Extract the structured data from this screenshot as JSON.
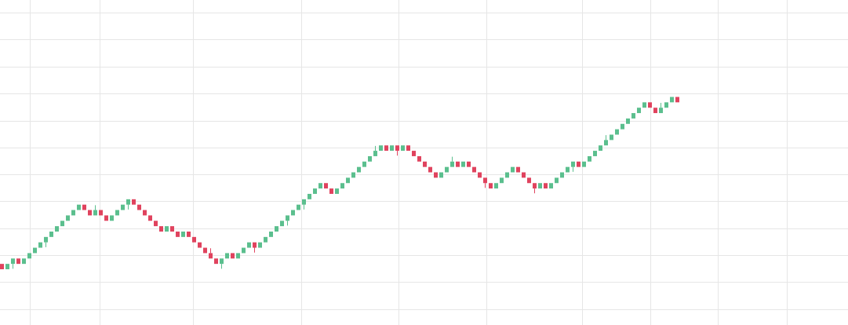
{
  "chart_data": {
    "type": "renko",
    "title": "",
    "xlabel": "",
    "ylabel": "",
    "grid": true,
    "legend": "none",
    "ylim": [
      -6,
      29
    ],
    "colors": {
      "up": "#5bbf8e",
      "down": "#e0435e",
      "grid": "#e6e6e6",
      "background": "#ffffff"
    },
    "bricks": [
      "d",
      "u",
      "u",
      "d",
      "u",
      "u",
      "u",
      "u",
      "u",
      "u",
      "u",
      "u",
      "u",
      "u",
      "u",
      "d",
      "d",
      "u",
      "d",
      "d",
      "u",
      "u",
      "u",
      "u",
      "d",
      "d",
      "d",
      "d",
      "d",
      "d",
      "u",
      "d",
      "d",
      "u",
      "d",
      "d",
      "d",
      "d",
      "d",
      "d",
      "u",
      "u",
      "d",
      "u",
      "u",
      "u",
      "d",
      "u",
      "u",
      "u",
      "u",
      "u",
      "u",
      "u",
      "u",
      "u",
      "u",
      "u",
      "u",
      "d",
      "d",
      "u",
      "u",
      "u",
      "u",
      "u",
      "u",
      "u",
      "u",
      "u",
      "d",
      "u",
      "d",
      "u",
      "d",
      "d",
      "d",
      "d",
      "d",
      "d",
      "u",
      "u",
      "u",
      "d",
      "u",
      "d",
      "d",
      "d",
      "d",
      "d",
      "u",
      "u",
      "u",
      "u",
      "d",
      "d",
      "d",
      "d",
      "u",
      "d",
      "u",
      "u",
      "u",
      "u",
      "u",
      "d",
      "u",
      "u",
      "u",
      "u",
      "u",
      "u",
      "u",
      "u",
      "u",
      "u",
      "u",
      "u",
      "d",
      "d",
      "u",
      "u",
      "u",
      "d"
    ],
    "wicks": [
      {
        "index": 2,
        "extend": -1
      },
      {
        "index": 8,
        "extend": -1
      },
      {
        "index": 17,
        "extend": 1
      },
      {
        "index": 23,
        "extend": -1
      },
      {
        "index": 38,
        "extend": 1
      },
      {
        "index": 40,
        "extend": -1
      },
      {
        "index": 46,
        "extend": -1
      },
      {
        "index": 52,
        "extend": -1
      },
      {
        "index": 55,
        "extend": -1
      },
      {
        "index": 68,
        "extend": 1
      },
      {
        "index": 72,
        "extend": -1
      },
      {
        "index": 82,
        "extend": 1
      },
      {
        "index": 88,
        "extend": -1
      },
      {
        "index": 97,
        "extend": -1
      },
      {
        "index": 104,
        "extend": -1
      },
      {
        "index": 110,
        "extend": 1
      },
      {
        "index": 120,
        "extend": 1
      },
      {
        "index": 126,
        "extend": -1
      }
    ]
  }
}
